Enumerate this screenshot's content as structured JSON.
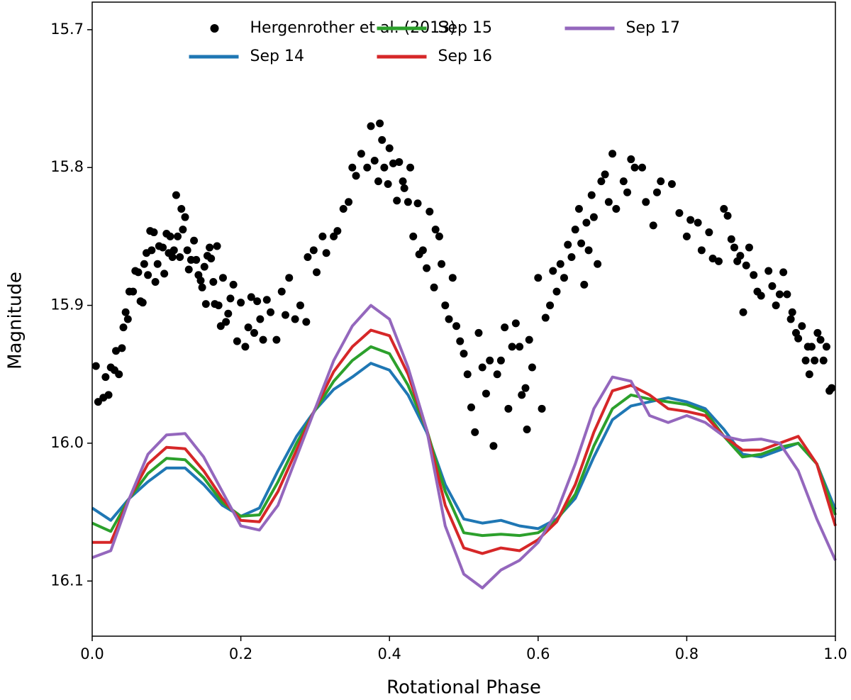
{
  "chart_data": {
    "type": "line",
    "xlabel": "Rotational Phase",
    "ylabel": "Magnitude",
    "xlim": [
      0,
      1
    ],
    "ylim": [
      16.14,
      15.68
    ],
    "xticks": [
      {
        "value": 0,
        "label": "0.0"
      },
      0.2,
      0.4,
      0.6,
      0.8,
      {
        "value": 1,
        "label": "1.0"
      }
    ],
    "yticks": [
      15.7,
      15.8,
      15.9,
      {
        "value": 16,
        "label": "16.0"
      },
      16.1
    ],
    "legend": "upper center",
    "series": [
      {
        "name": "Hergenrother et al. (2013)",
        "type": "scatter",
        "color": "#000000",
        "x": [
          0.005,
          0.008,
          0.015,
          0.018,
          0.022,
          0.025,
          0.03,
          0.032,
          0.036,
          0.04,
          0.042,
          0.045,
          0.048,
          0.05,
          0.055,
          0.058,
          0.062,
          0.065,
          0.068,
          0.07,
          0.073,
          0.075,
          0.078,
          0.08,
          0.083,
          0.085,
          0.088,
          0.09,
          0.095,
          0.097,
          0.1,
          0.103,
          0.105,
          0.108,
          0.11,
          0.113,
          0.115,
          0.118,
          0.12,
          0.122,
          0.125,
          0.128,
          0.13,
          0.133,
          0.137,
          0.14,
          0.143,
          0.146,
          0.148,
          0.151,
          0.153,
          0.155,
          0.158,
          0.16,
          0.163,
          0.165,
          0.168,
          0.17,
          0.173,
          0.176,
          0.18,
          0.183,
          0.186,
          0.19,
          0.195,
          0.2,
          0.206,
          0.21,
          0.214,
          0.218,
          0.222,
          0.226,
          0.23,
          0.235,
          0.24,
          0.248,
          0.255,
          0.26,
          0.265,
          0.273,
          0.28,
          0.288,
          0.29,
          0.298,
          0.302,
          0.31,
          0.315,
          0.325,
          0.33,
          0.338,
          0.345,
          0.35,
          0.355,
          0.362,
          0.37,
          0.375,
          0.38,
          0.385,
          0.387,
          0.39,
          0.393,
          0.398,
          0.4,
          0.405,
          0.41,
          0.413,
          0.418,
          0.42,
          0.425,
          0.428,
          0.432,
          0.438,
          0.44,
          0.445,
          0.45,
          0.454,
          0.46,
          0.462,
          0.467,
          0.47,
          0.475,
          0.48,
          0.485,
          0.49,
          0.495,
          0.5,
          0.505,
          0.51,
          0.515,
          0.52,
          0.525,
          0.53,
          0.535,
          0.54,
          0.545,
          0.55,
          0.555,
          0.56,
          0.565,
          0.57,
          0.575,
          0.578,
          0.583,
          0.585,
          0.588,
          0.592,
          0.6,
          0.605,
          0.61,
          0.616,
          0.62,
          0.625,
          0.63,
          0.635,
          0.64,
          0.645,
          0.65,
          0.655,
          0.658,
          0.662,
          0.665,
          0.668,
          0.672,
          0.675,
          0.68,
          0.685,
          0.69,
          0.695,
          0.7,
          0.705,
          0.715,
          0.72,
          0.725,
          0.73,
          0.74,
          0.745,
          0.755,
          0.76,
          0.765,
          0.78,
          0.79,
          0.8,
          0.805,
          0.815,
          0.82,
          0.83,
          0.835,
          0.843,
          0.85,
          0.855,
          0.86,
          0.864,
          0.868,
          0.872,
          0.876,
          0.88,
          0.884,
          0.89,
          0.895,
          0.9,
          0.91,
          0.915,
          0.92,
          0.925,
          0.93,
          0.935,
          0.94,
          0.942,
          0.947,
          0.95,
          0.955,
          0.96,
          0.963,
          0.965,
          0.968,
          0.972,
          0.976,
          0.98,
          0.984,
          0.988,
          0.992,
          0.995
        ],
        "values": [
          15.944,
          15.97,
          15.967,
          15.952,
          15.965,
          15.945,
          15.947,
          15.933,
          15.95,
          15.931,
          15.916,
          15.905,
          15.91,
          15.89,
          15.89,
          15.875,
          15.876,
          15.897,
          15.898,
          15.87,
          15.862,
          15.878,
          15.846,
          15.86,
          15.847,
          15.883,
          15.87,
          15.857,
          15.858,
          15.877,
          15.848,
          15.862,
          15.85,
          15.865,
          15.86,
          15.82,
          15.85,
          15.865,
          15.83,
          15.845,
          15.836,
          15.86,
          15.874,
          15.867,
          15.853,
          15.867,
          15.878,
          15.882,
          15.887,
          15.872,
          15.899,
          15.864,
          15.858,
          15.866,
          15.883,
          15.899,
          15.857,
          15.9,
          15.915,
          15.88,
          15.912,
          15.906,
          15.895,
          15.885,
          15.926,
          15.898,
          15.93,
          15.916,
          15.894,
          15.92,
          15.897,
          15.91,
          15.925,
          15.896,
          15.905,
          15.925,
          15.89,
          15.907,
          15.88,
          15.91,
          15.9,
          15.912,
          15.865,
          15.86,
          15.876,
          15.85,
          15.862,
          15.85,
          15.846,
          15.83,
          15.825,
          15.8,
          15.806,
          15.79,
          15.8,
          15.77,
          15.795,
          15.81,
          15.768,
          15.78,
          15.8,
          15.812,
          15.786,
          15.797,
          15.824,
          15.796,
          15.81,
          15.815,
          15.825,
          15.8,
          15.85,
          15.826,
          15.863,
          15.86,
          15.873,
          15.832,
          15.887,
          15.845,
          15.85,
          15.87,
          15.9,
          15.91,
          15.88,
          15.915,
          15.926,
          15.935,
          15.95,
          15.974,
          15.992,
          15.92,
          15.945,
          15.964,
          15.94,
          16.002,
          15.95,
          15.94,
          15.916,
          15.975,
          15.93,
          15.913,
          15.93,
          15.965,
          15.96,
          15.99,
          15.925,
          15.945,
          15.88,
          15.975,
          15.909,
          15.9,
          15.875,
          15.89,
          15.87,
          15.88,
          15.856,
          15.865,
          15.845,
          15.83,
          15.855,
          15.885,
          15.84,
          15.86,
          15.82,
          15.836,
          15.87,
          15.81,
          15.805,
          15.825,
          15.79,
          15.83,
          15.81,
          15.818,
          15.794,
          15.8,
          15.8,
          15.825,
          15.842,
          15.818,
          15.81,
          15.812,
          15.833,
          15.85,
          15.838,
          15.84,
          15.86,
          15.847,
          15.866,
          15.868,
          15.83,
          15.835,
          15.852,
          15.858,
          15.868,
          15.864,
          15.905,
          15.871,
          15.858,
          15.878,
          15.89,
          15.893,
          15.875,
          15.886,
          15.9,
          15.892,
          15.876,
          15.892,
          15.91,
          15.905,
          15.92,
          15.924,
          15.915,
          15.94,
          15.93,
          15.95,
          15.93,
          15.94,
          15.92,
          15.925,
          15.94,
          15.93,
          15.962,
          15.96
        ]
      },
      {
        "name": "Sep 14",
        "color": "#1f77b4",
        "x": [
          0,
          0.025,
          0.05,
          0.075,
          0.1,
          0.125,
          0.15,
          0.175,
          0.2,
          0.225,
          0.25,
          0.275,
          0.3,
          0.325,
          0.35,
          0.375,
          0.4,
          0.425,
          0.45,
          0.475,
          0.5,
          0.525,
          0.55,
          0.575,
          0.6,
          0.625,
          0.65,
          0.675,
          0.7,
          0.725,
          0.75,
          0.775,
          0.8,
          0.825,
          0.85,
          0.875,
          0.9,
          0.925,
          0.95,
          0.975,
          1
        ],
        "values": [
          16.047,
          16.056,
          16.04,
          16.028,
          16.018,
          16.018,
          16.03,
          16.045,
          16.053,
          16.047,
          16.02,
          15.995,
          15.976,
          15.961,
          15.952,
          15.942,
          15.947,
          15.965,
          15.992,
          16.03,
          16.055,
          16.058,
          16.056,
          16.06,
          16.062,
          16.055,
          16.04,
          16.01,
          15.983,
          15.973,
          15.97,
          15.967,
          15.97,
          15.975,
          15.99,
          16.008,
          16.01,
          16.005,
          16,
          16.015,
          16.048
        ]
      },
      {
        "name": "Sep 15",
        "color": "#2ca02c",
        "x": [
          0,
          0.025,
          0.05,
          0.075,
          0.1,
          0.125,
          0.15,
          0.175,
          0.2,
          0.225,
          0.25,
          0.275,
          0.3,
          0.325,
          0.35,
          0.375,
          0.4,
          0.425,
          0.45,
          0.475,
          0.5,
          0.525,
          0.55,
          0.575,
          0.6,
          0.625,
          0.65,
          0.675,
          0.7,
          0.725,
          0.75,
          0.775,
          0.8,
          0.825,
          0.85,
          0.875,
          0.9,
          0.925,
          0.95,
          0.975,
          1
        ],
        "values": [
          16.058,
          16.064,
          16.04,
          16.022,
          16.011,
          16.012,
          16.025,
          16.043,
          16.053,
          16.052,
          16.028,
          16,
          15.976,
          15.955,
          15.94,
          15.93,
          15.935,
          15.958,
          15.99,
          16.035,
          16.065,
          16.067,
          16.066,
          16.067,
          16.065,
          16.056,
          16.037,
          16.002,
          15.975,
          15.965,
          15.968,
          15.97,
          15.972,
          15.977,
          15.995,
          16.01,
          16.008,
          16.003,
          16,
          16.015,
          16.052
        ]
      },
      {
        "name": "Sep 16",
        "color": "#d62728",
        "x": [
          0,
          0.025,
          0.05,
          0.075,
          0.1,
          0.125,
          0.15,
          0.175,
          0.2,
          0.225,
          0.25,
          0.275,
          0.3,
          0.325,
          0.35,
          0.375,
          0.4,
          0.425,
          0.45,
          0.475,
          0.5,
          0.525,
          0.55,
          0.575,
          0.6,
          0.625,
          0.65,
          0.675,
          0.7,
          0.725,
          0.75,
          0.775,
          0.8,
          0.825,
          0.85,
          0.875,
          0.9,
          0.925,
          0.95,
          0.975,
          1
        ],
        "values": [
          16.072,
          16.072,
          16.04,
          16.015,
          16.003,
          16.004,
          16.02,
          16.04,
          16.056,
          16.057,
          16.035,
          16.005,
          15.975,
          15.948,
          15.93,
          15.918,
          15.922,
          15.95,
          15.99,
          16.045,
          16.076,
          16.08,
          16.076,
          16.078,
          16.07,
          16.057,
          16.03,
          15.992,
          15.962,
          15.958,
          15.965,
          15.975,
          15.977,
          15.98,
          15.995,
          16.005,
          16.005,
          16,
          15.995,
          16.015,
          16.06
        ]
      },
      {
        "name": "Sep 17",
        "color": "#9467bd",
        "x": [
          0,
          0.025,
          0.05,
          0.075,
          0.1,
          0.125,
          0.15,
          0.175,
          0.2,
          0.225,
          0.25,
          0.275,
          0.3,
          0.325,
          0.35,
          0.375,
          0.4,
          0.425,
          0.45,
          0.475,
          0.5,
          0.525,
          0.55,
          0.575,
          0.6,
          0.625,
          0.65,
          0.675,
          0.7,
          0.725,
          0.75,
          0.775,
          0.8,
          0.825,
          0.85,
          0.875,
          0.9,
          0.925,
          0.95,
          0.975,
          1
        ],
        "values": [
          16.083,
          16.078,
          16.04,
          16.008,
          15.994,
          15.993,
          16.01,
          16.035,
          16.06,
          16.063,
          16.045,
          16.01,
          15.975,
          15.94,
          15.915,
          15.9,
          15.91,
          15.945,
          15.99,
          16.06,
          16.095,
          16.105,
          16.092,
          16.085,
          16.072,
          16.05,
          16.015,
          15.975,
          15.952,
          15.955,
          15.98,
          15.985,
          15.98,
          15.985,
          15.995,
          15.998,
          15.997,
          16,
          16.02,
          16.055,
          16.085
        ]
      }
    ]
  }
}
